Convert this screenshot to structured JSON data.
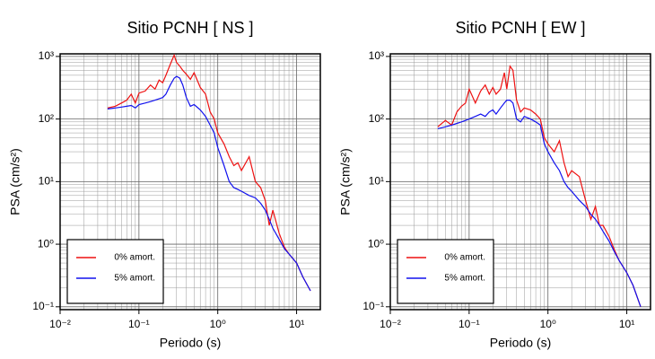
{
  "chart_data": [
    {
      "type": "line",
      "title": "Sitio PCNH [ NS ]",
      "x_label": "Periodo (s)",
      "y_label": "PSA (cm/s²)",
      "log_x": true,
      "log_y": true,
      "grid": true,
      "minor_grid": true,
      "legend": "lower left",
      "xlim": [
        0.01,
        20
      ],
      "ylim": [
        0.09,
        1100
      ],
      "xticks": [
        {
          "value": 0.01,
          "label": "10⁻²"
        },
        {
          "value": 0.1,
          "label": "10⁻¹"
        },
        {
          "value": 1,
          "label": "10⁰"
        },
        {
          "value": 10,
          "label": "10¹"
        }
      ],
      "yticks": [
        {
          "value": 0.1,
          "label": "10⁻¹"
        },
        {
          "value": 1,
          "label": "10⁰"
        },
        {
          "value": 10,
          "label": "10¹"
        },
        {
          "value": 100,
          "label": "10²"
        },
        {
          "value": 1000,
          "label": "10³"
        }
      ],
      "x": [
        0.04,
        0.05,
        0.06,
        0.07,
        0.08,
        0.09,
        0.1,
        0.12,
        0.14,
        0.16,
        0.18,
        0.2,
        0.22,
        0.25,
        0.28,
        0.3,
        0.33,
        0.36,
        0.4,
        0.45,
        0.5,
        0.6,
        0.7,
        0.8,
        0.9,
        1.0,
        1.2,
        1.4,
        1.6,
        1.8,
        2.0,
        2.5,
        3.0,
        3.5,
        4.0,
        4.5,
        5.0,
        6.0,
        7.0,
        8.0,
        10,
        12,
        15
      ],
      "series": [
        {
          "name": "0% amort.",
          "color": "#ee1111",
          "values": [
            150,
            160,
            180,
            200,
            250,
            180,
            260,
            280,
            350,
            300,
            420,
            380,
            500,
            750,
            1050,
            800,
            700,
            600,
            520,
            430,
            550,
            320,
            250,
            130,
            100,
            60,
            40,
            25,
            18,
            20,
            15,
            25,
            10,
            8,
            5,
            2,
            3.5,
            1.5,
            0.9,
            0.7,
            0.5,
            0.3,
            0.18
          ]
        },
        {
          "name": "5% amort.",
          "color": "#1111ee",
          "values": [
            145,
            150,
            155,
            160,
            165,
            150,
            170,
            180,
            190,
            200,
            210,
            220,
            250,
            350,
            450,
            480,
            450,
            350,
            220,
            160,
            170,
            140,
            110,
            80,
            60,
            35,
            18,
            10,
            8,
            7.5,
            7,
            6,
            5.5,
            4.5,
            3.5,
            2.5,
            1.8,
            1.2,
            0.85,
            0.7,
            0.5,
            0.3,
            0.18
          ]
        }
      ]
    },
    {
      "type": "line",
      "title": "Sitio PCNH [ EW ]",
      "x_label": "Periodo (s)",
      "y_label": "PSA (cm/s²)",
      "log_x": true,
      "log_y": true,
      "grid": true,
      "minor_grid": true,
      "legend": "lower left",
      "xlim": [
        0.01,
        20
      ],
      "ylim": [
        0.09,
        1100
      ],
      "xticks": [
        {
          "value": 0.01,
          "label": "10⁻²"
        },
        {
          "value": 0.1,
          "label": "10⁻¹"
        },
        {
          "value": 1,
          "label": "10⁰"
        },
        {
          "value": 10,
          "label": "10¹"
        }
      ],
      "yticks": [
        {
          "value": 0.1,
          "label": "10⁻¹"
        },
        {
          "value": 1,
          "label": "10⁰"
        },
        {
          "value": 10,
          "label": "10¹"
        },
        {
          "value": 100,
          "label": "10²"
        },
        {
          "value": 1000,
          "label": "10³"
        }
      ],
      "x": [
        0.04,
        0.05,
        0.06,
        0.07,
        0.08,
        0.09,
        0.1,
        0.12,
        0.14,
        0.16,
        0.18,
        0.2,
        0.22,
        0.25,
        0.28,
        0.3,
        0.33,
        0.36,
        0.4,
        0.45,
        0.5,
        0.6,
        0.7,
        0.8,
        0.9,
        1.0,
        1.2,
        1.4,
        1.6,
        1.8,
        2.0,
        2.5,
        3.0,
        3.5,
        4.0,
        4.5,
        5.0,
        6.0,
        7.0,
        8.0,
        10,
        12,
        15
      ],
      "series": [
        {
          "name": "0% amort.",
          "color": "#ee1111",
          "values": [
            75,
            95,
            80,
            130,
            160,
            180,
            300,
            180,
            280,
            350,
            250,
            320,
            250,
            300,
            550,
            300,
            700,
            600,
            200,
            130,
            150,
            140,
            120,
            100,
            50,
            40,
            30,
            45,
            20,
            12,
            15,
            12,
            5,
            2.5,
            4,
            2,
            2,
            1.3,
            0.8,
            0.55,
            0.35,
            0.22,
            0.1
          ]
        },
        {
          "name": "5% amort.",
          "color": "#1111ee",
          "values": [
            70,
            75,
            80,
            85,
            90,
            95,
            100,
            110,
            120,
            110,
            130,
            140,
            120,
            150,
            180,
            200,
            200,
            180,
            100,
            90,
            110,
            100,
            90,
            80,
            40,
            30,
            20,
            15,
            10,
            8,
            7,
            5,
            4,
            3,
            2.5,
            2,
            1.6,
            1.1,
            0.75,
            0.55,
            0.35,
            0.22,
            0.1
          ]
        }
      ]
    }
  ]
}
